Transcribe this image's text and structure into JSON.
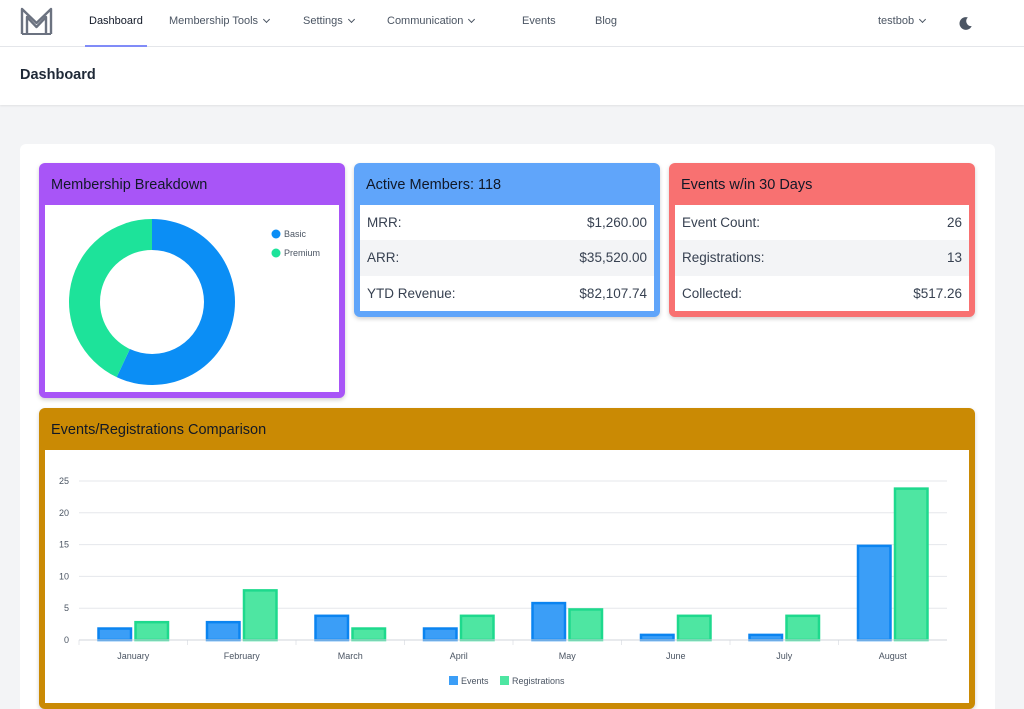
{
  "nav": {
    "items": [
      {
        "label": "Dashboard"
      },
      {
        "label": "Membership Tools"
      },
      {
        "label": "Settings"
      },
      {
        "label": "Communication"
      },
      {
        "label": "Events"
      },
      {
        "label": "Blog"
      }
    ],
    "user": "testbob"
  },
  "page": {
    "title": "Dashboard"
  },
  "membership": {
    "title": "Membership Breakdown",
    "legend": [
      "Basic",
      "Premium"
    ],
    "colors": [
      "#0b8ef5",
      "#1de39a"
    ],
    "values": [
      57,
      43
    ]
  },
  "active": {
    "title": "Active Members: 118",
    "rows": [
      {
        "label": "MRR:",
        "value": "$1,260.00"
      },
      {
        "label": "ARR:",
        "value": "$35,520.00"
      },
      {
        "label": "YTD Revenue:",
        "value": "$82,107.74"
      }
    ]
  },
  "events30": {
    "title": "Events w/in 30 Days",
    "rows": [
      {
        "label": "Event Count:",
        "value": "26"
      },
      {
        "label": "Registrations:",
        "value": "13"
      },
      {
        "label": "Collected:",
        "value": "$517.26"
      }
    ]
  },
  "comparison": {
    "title": "Events/Registrations Comparison"
  },
  "chart_data": [
    {
      "type": "pie",
      "title": "Membership Breakdown",
      "labels": [
        "Basic",
        "Premium"
      ],
      "values": [
        57,
        43
      ],
      "legend": "top-right"
    },
    {
      "type": "bar",
      "title": "Events/Registrations Comparison",
      "categories": [
        "January",
        "February",
        "March",
        "April",
        "May",
        "June",
        "July",
        "August"
      ],
      "series": [
        {
          "name": "Events",
          "values": [
            2,
            3,
            4,
            2,
            6,
            1,
            1,
            15
          ],
          "color": "#3b9ef7",
          "stroke": "#0b84f0"
        },
        {
          "name": "Registrations",
          "values": [
            3,
            8,
            2,
            4,
            5,
            4,
            4,
            24
          ],
          "color": "#4ee6a2",
          "stroke": "#1ed98d"
        }
      ],
      "yticks": [
        0,
        5,
        10,
        15,
        20,
        25
      ],
      "ylim": [
        0,
        25
      ],
      "legend": "bottom-center"
    }
  ]
}
